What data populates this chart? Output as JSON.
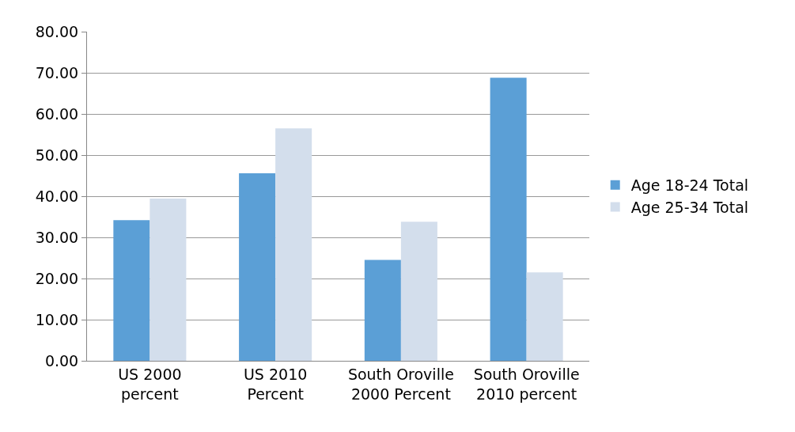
{
  "chart_data": {
    "type": "bar",
    "categories": [
      "US 2000 percent",
      "US 2010 Percent",
      "South Oroville 2000 Percent",
      "South Oroville 2010 percent"
    ],
    "series": [
      {
        "name": "Age 18-24 Total",
        "color": "#5b9fd6",
        "values": [
          34.2,
          45.6,
          24.5,
          68.8
        ]
      },
      {
        "name": "Age 25-34 Total",
        "color": "#d3deec",
        "values": [
          39.4,
          56.5,
          33.8,
          21.5
        ]
      }
    ],
    "ylim": [
      0,
      80
    ],
    "yticks": [
      {
        "value": 0,
        "label": "0.00"
      },
      {
        "value": 10,
        "label": "10.00"
      },
      {
        "value": 20,
        "label": "20.00"
      },
      {
        "value": 30,
        "label": "30.00"
      },
      {
        "value": 40,
        "label": "40.00"
      },
      {
        "value": 50,
        "label": "50.00"
      },
      {
        "value": 60,
        "label": "60.00"
      },
      {
        "value": 70,
        "label": "70.00"
      },
      {
        "value": 80,
        "label": "80.00"
      }
    ],
    "grid": "y",
    "legend": "right"
  }
}
